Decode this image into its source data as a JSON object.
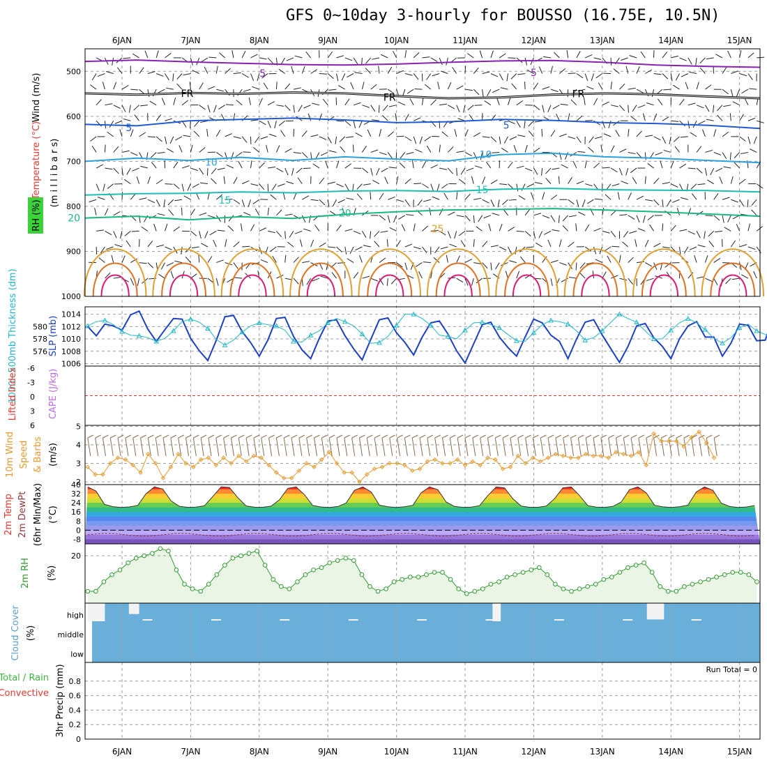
{
  "title": "GFS 0~10day 3-hourly for BOUSSO (16.75E, 10.5N)",
  "colors": {
    "grid": "#9e9e9e",
    "axis": "#000000",
    "temp_neg": "#8a1fb3",
    "temp_5": "#1f5ad6",
    "temp_10": "#2ba1e0",
    "temp_15": "#1bbfb3",
    "temp_20": "#17b884",
    "temp_25": "#e0a030",
    "temp_30": "#e07020",
    "temp_35": "#d81c74",
    "thickness": "#22b7c8",
    "slp": "#1b3fc7",
    "lifted": "#e8382e",
    "cape": "#c06ae0",
    "wind10": "#e69a2e",
    "barb10": "#8b6b4a",
    "rh2m": "#2e9b2e",
    "rh_fill": "#eaf5e6",
    "cloud": "#6aafd9",
    "precip_total": "#3cb43c",
    "precip_conv": "#e8382e"
  },
  "chart_data": {
    "type": "line",
    "dates": [
      "6JAN",
      "7JAN",
      "8JAN",
      "9JAN",
      "10JAN",
      "11JAN",
      "12JAN",
      "13JAN",
      "14JAN",
      "15JAN"
    ],
    "time_axis": {
      "start_label": "5JAN 12Z",
      "end_label": "15JAN 06Z",
      "step_hours": 3
    },
    "panels": [
      {
        "id": "upper",
        "ylabel": [
          "Wind (m/s)",
          "Temperature (°C)",
          "RH (%)",
          "(m i l l i b a r s)"
        ],
        "yticks": [
          500,
          600,
          700,
          800,
          900,
          1000
        ],
        "ylim": [
          450,
          1000
        ],
        "isotherm_labels": [
          {
            "text": "5",
            "t": 3.05,
            "p": 504
          },
          {
            "text": "5",
            "t": 7.0,
            "p": 503
          },
          {
            "text": "FR",
            "t": 1.95,
            "p": 549
          },
          {
            "text": "FR",
            "t": 4.9,
            "p": 558
          },
          {
            "text": "FR",
            "t": 7.65,
            "p": 550
          },
          {
            "text": "5",
            "t": 1.1,
            "p": 625
          },
          {
            "text": "5",
            "t": 6.6,
            "p": 620
          },
          {
            "text": "10",
            "t": 2.3,
            "p": 702
          },
          {
            "text": "10",
            "t": 6.3,
            "p": 685
          },
          {
            "text": "15",
            "t": 2.5,
            "p": 786
          },
          {
            "text": "15",
            "t": 6.25,
            "p": 763
          },
          {
            "text": "20",
            "t": 0.3,
            "p": 826
          },
          {
            "text": "20",
            "t": 4.25,
            "p": 815
          },
          {
            "text": "25",
            "t": 5.6,
            "p": 850
          }
        ],
        "isotherms": [
          {
            "level": "-5",
            "p": [
              478,
              475,
              479,
              482,
              485,
              486,
              484,
              480,
              477,
              476,
              480,
              486,
              489,
              491
            ]
          },
          {
            "level": "FR",
            "p": [
              549,
              552,
              548,
              550,
              547,
              549,
              555,
              560,
              558,
              552,
              549,
              551,
              556,
              560
            ]
          },
          {
            "level": "5",
            "p": [
              618,
              621,
              610,
              607,
              604,
              608,
              614,
              612,
              607,
              609,
              614,
              616,
              620,
              627
            ]
          },
          {
            "level": "10",
            "p": [
              700,
              693,
              698,
              691,
              698,
              690,
              695,
              699,
              685,
              682,
              690,
              693,
              698,
              703
            ]
          },
          {
            "level": "15",
            "p": [
              775,
              772,
              771,
              768,
              770,
              766,
              765,
              767,
              762,
              760,
              763,
              764,
              765,
              768
            ]
          },
          {
            "level": "20",
            "p": [
              826,
              822,
              830,
              823,
              827,
              818,
              812,
              808,
              807,
              805,
              808,
              812,
              817,
              822
            ]
          }
        ]
      },
      {
        "id": "thickness_slp",
        "ylabel_left": "1000~500mb Thickness (dm)",
        "ylabel_right": "SLP (mb)",
        "left_ticks": [
          576,
          578,
          580
        ],
        "right_ticks": [
          1006,
          1008,
          1010,
          1012,
          1014
        ],
        "slp_ylim": [
          1005.6,
          1015.2
        ],
        "slp": [
          1012.0,
          1010.5,
          1012.4,
          1012.1,
          1011.4,
          1013.9,
          1014.5,
          1011.6,
          1009.6,
          1011.5,
          1013.3,
          1013.2,
          1010.1,
          1008.1,
          1006.5,
          1009.8,
          1013.6,
          1013.8,
          1011.2,
          1009.4,
          1007.2,
          1009.8,
          1013.3,
          1013.5,
          1010.4,
          1008.2,
          1006.8,
          1010.1,
          1012.9,
          1013.1,
          1010.5,
          1008.4,
          1006.6,
          1009.9,
          1013.1,
          1013.4,
          1011.0,
          1009.4,
          1007.4,
          1010.3,
          1012.6,
          1012.9,
          1010.8,
          1008.1,
          1006.1,
          1009.2,
          1012.3,
          1012.7,
          1010.3,
          1008.6,
          1007.2,
          1010.3,
          1013.2,
          1012.6,
          1010.6,
          1009.6,
          1006.8,
          1010.0,
          1012.7,
          1013.1,
          1010.6,
          1008.4,
          1006.2,
          1008.8,
          1012.1,
          1012.5,
          1010.2,
          1008.8,
          1006.8,
          1010.0,
          1012.1,
          1012.8,
          1010.3,
          1010.3,
          1007.2,
          1009.3,
          1012.4,
          1012.2,
          1009.7,
          1009.8,
          1013.8
        ],
        "thickness": [
          1012.1,
          1012.8,
          1013.0,
          1012.3,
          1011.2,
          1010.6,
          1010.5,
          1010.2,
          1009.6,
          1010.1,
          1011.3,
          1012.8,
          1013.2,
          1012.7,
          1011.7,
          1009.9,
          1009.0,
          1009.8,
          1011.1,
          1012.1,
          1012.6,
          1012.3,
          1012.1,
          1011.4,
          1009.6,
          1009.5,
          1010.6,
          1011.3,
          1012.6,
          1013.3,
          1012.8,
          1012.1,
          1010.8,
          1009.3,
          1009.4,
          1010.4,
          1012.2,
          1014.0,
          1014.0,
          1013.3,
          1012.2,
          1010.6,
          1010.4,
          1010.0,
          1011.4,
          1012.6,
          1012.7,
          1012.3,
          1011.8,
          1010.7,
          1009.7,
          1009.6,
          1011.0,
          1012.3,
          1013.0,
          1012.8,
          1012.4,
          1011.3,
          1009.8,
          1010.2,
          1011.3,
          1012.7,
          1014.0,
          1013.3,
          1012.7,
          1011.3,
          1010.0,
          1010.0,
          1011.4,
          1012.6,
          1013.3,
          1012.6,
          1011.5,
          1010.1,
          1009.3,
          1010.2,
          1011.8,
          1012.4,
          1011.3,
          1010.7,
          1009.5,
          1008.6,
          1007.4,
          1006.0
        ]
      },
      {
        "id": "stability",
        "ylabel_left": "Lifted Index",
        "ylabel_right": "CAPE (J/kg)",
        "yticks": [
          "-6",
          "-3",
          "0",
          "3",
          "6"
        ],
        "lifted_index_zero": 0
      },
      {
        "id": "wind10m",
        "ylabel": [
          "10m Wind",
          "Speed",
          "& Barbs",
          "(m/s)"
        ],
        "yticks": [
          2,
          3,
          4,
          5
        ],
        "ylim": [
          1.85,
          5.05
        ],
        "speed": [
          2.8,
          2.4,
          2.4,
          3.0,
          3.3,
          3.2,
          2.9,
          2.5,
          3.5,
          3.0,
          2.2,
          2.8,
          3.5,
          3.0,
          2.8,
          3.2,
          3.3,
          2.9,
          3.3,
          3.0,
          3.4,
          3.1,
          3.4,
          3.3,
          2.9,
          2.5,
          2.2,
          2.2,
          2.6,
          3.0,
          2.8,
          3.2,
          3.6,
          3.0,
          2.5,
          2.5,
          2.0,
          2.4,
          2.7,
          2.8,
          3.0,
          3.0,
          2.9,
          2.6,
          2.7,
          3.1,
          3.2,
          3.0,
          3.0,
          3.2,
          2.9,
          3.1,
          2.9,
          3.3,
          3.2,
          2.7,
          2.8,
          3.4,
          3.0,
          3.3,
          3.1,
          3.3,
          3.5,
          3.4,
          3.3,
          3.3,
          3.5,
          3.4,
          3.4,
          3.3,
          3.6,
          3.5,
          3.4,
          3.6,
          2.9,
          4.6,
          4.2,
          4.2,
          4.2,
          3.9,
          4.4,
          4.7,
          4.1,
          3.3
        ]
      },
      {
        "id": "temp2m",
        "ylabel": [
          "2m Temp",
          "2m DewPt",
          "(6hr Min/Max)",
          "(°C)"
        ],
        "yticks": [
          -8,
          0,
          8,
          16,
          24,
          32,
          40
        ],
        "ylim": [
          -12,
          40
        ],
        "temp_bands": [
          "#ff2222",
          "#ff8833",
          "#ffcc33",
          "#ccdd33",
          "#66cc55",
          "#33bb88",
          "#33aadd",
          "#5588ee",
          "#7799ee",
          "#9999ee",
          "#bbaaff",
          "#9977dd",
          "#7755bb"
        ]
      },
      {
        "id": "rh2m",
        "ylabel": [
          "2m RH",
          "(%)"
        ],
        "yticks": [
          20
        ],
        "ylim": [
          0,
          25
        ],
        "values": [
          5,
          5,
          9,
          12,
          14,
          17,
          19,
          20,
          21,
          23,
          22,
          14,
          8,
          6,
          5,
          8,
          12,
          16,
          19,
          20,
          21,
          22,
          16,
          10,
          7,
          6,
          9,
          12,
          14,
          15,
          17,
          18,
          19,
          18,
          12,
          7,
          5,
          6,
          9,
          10,
          11,
          11,
          12,
          13,
          13,
          10,
          6,
          4,
          5,
          6,
          8,
          9,
          11,
          12,
          13,
          14,
          15,
          12,
          8,
          6,
          5,
          6,
          7,
          8,
          10,
          11,
          13,
          15,
          16,
          17,
          13,
          7,
          5,
          5,
          7,
          8,
          9,
          10,
          11,
          12,
          13,
          13,
          12,
          9
        ]
      },
      {
        "id": "cloud",
        "ylabel": [
          "Cloud Cover",
          "(%)"
        ],
        "levels": [
          "high",
          "middle",
          "low"
        ],
        "high_breaks": [
          {
            "t": 0.0,
            "w": 0.25,
            "h": 1.0
          },
          {
            "t": 0.6,
            "w": 0.15,
            "h": 0.6
          },
          {
            "t": 5.9,
            "w": 0.12,
            "h": 1.0
          },
          {
            "t": 8.15,
            "w": 0.25,
            "h": 0.9
          }
        ]
      },
      {
        "id": "precip",
        "ylabel": [
          "Total / Rain",
          "Convective",
          "3hr Precip (mm)"
        ],
        "yticks": [
          "0",
          "0.2",
          "0.4",
          "0.6",
          "0.8"
        ],
        "ylim": [
          0,
          1.0
        ],
        "run_total_label": "Run Total = 0"
      }
    ]
  }
}
